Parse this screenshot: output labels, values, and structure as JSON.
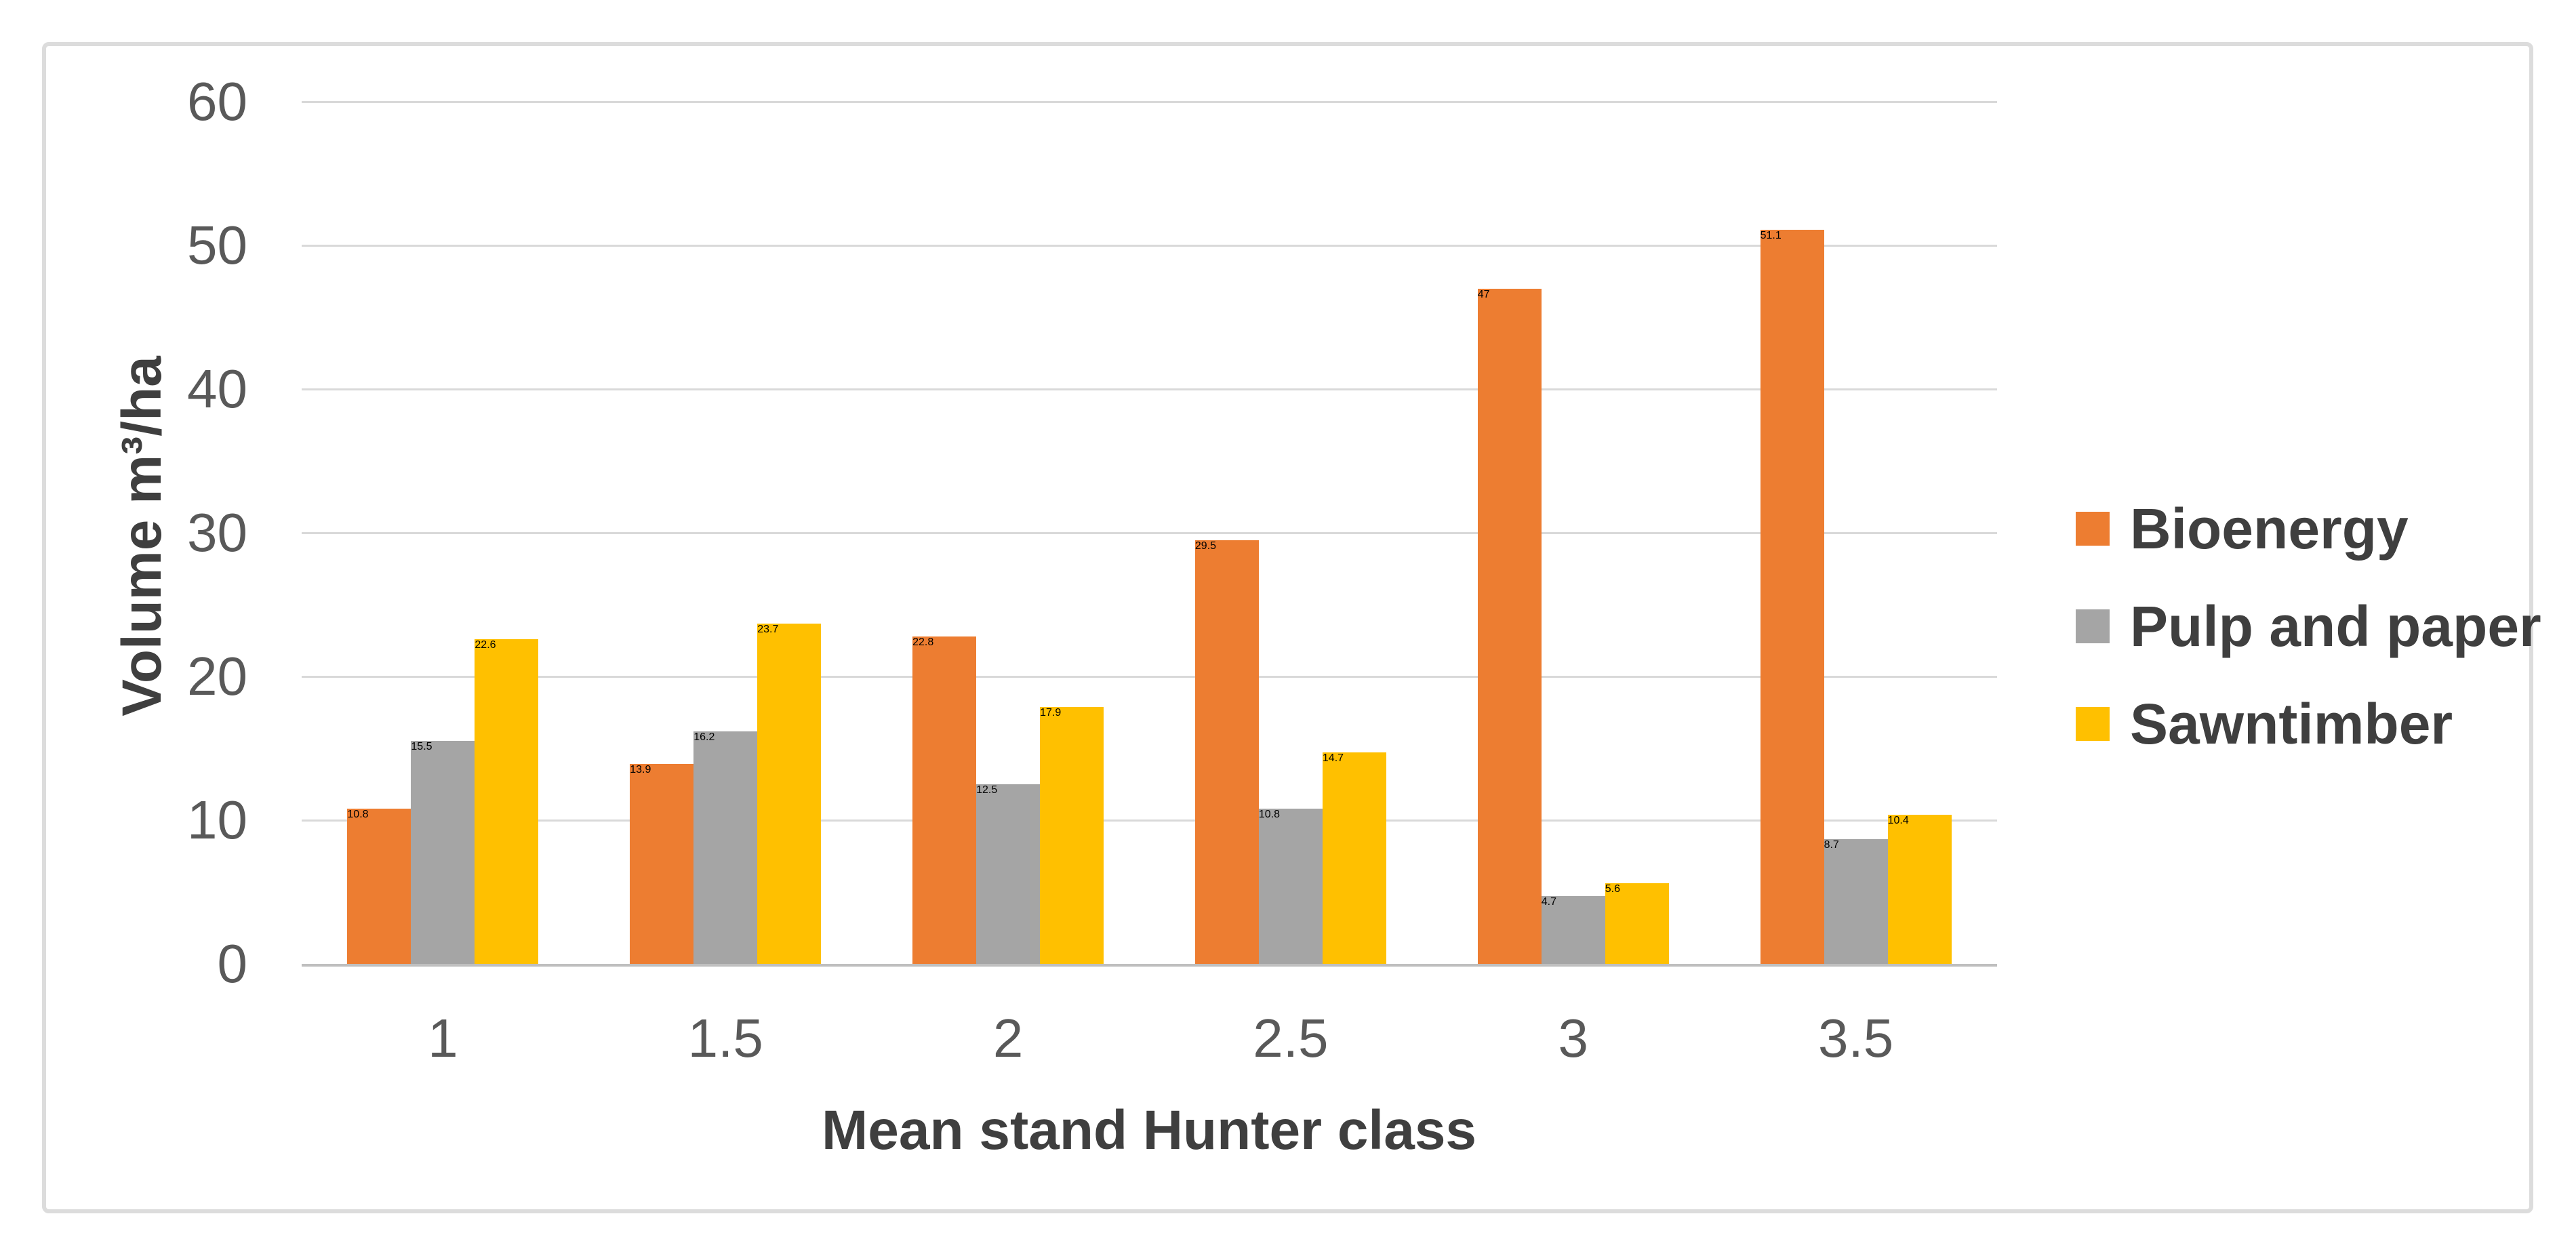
{
  "chart_data": {
    "type": "bar",
    "title": "",
    "categories": [
      "1",
      "1.5",
      "2",
      "2.5",
      "3",
      "3.5"
    ],
    "series": [
      {
        "name": "Bioenergy",
        "color": "#ED7D31",
        "values": [
          10.8,
          13.9,
          22.8,
          29.5,
          47.0,
          51.1
        ]
      },
      {
        "name": "Pulp and paper",
        "color": "#A5A5A5",
        "values": [
          15.5,
          16.2,
          12.5,
          10.8,
          4.7,
          8.7
        ]
      },
      {
        "name": "Sawntimber",
        "color": "#FFC000",
        "values": [
          22.6,
          23.7,
          17.9,
          14.7,
          5.6,
          10.4
        ]
      }
    ],
    "xlabel": "Mean stand Hunter class",
    "ylabel": "Volume m³/ha",
    "ylim": [
      0,
      60
    ],
    "yticks": [
      0,
      10,
      20,
      30,
      40,
      50,
      60
    ],
    "grid": "horizontal",
    "legend_position": "right"
  },
  "colors": {
    "background": "#FFFFFF",
    "frame_border": "#DCDCDC",
    "gridline": "#D9D9D9",
    "axis_line": "#BFBFBF",
    "tick_text": "#595959",
    "title_text": "#3F3F3F"
  }
}
